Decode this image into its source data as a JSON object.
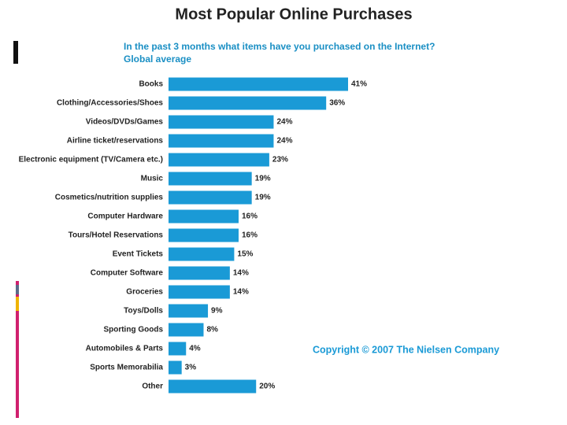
{
  "chart_data": {
    "type": "bar",
    "orientation": "horizontal",
    "title": "Most Popular Online Purchases",
    "subtitle": [
      "In the past 3 months what items have you purchased on the Internet?",
      "Global average"
    ],
    "annotation": "Copyright © 2007 The Nielsen Company",
    "color": "#1a9ad6",
    "categories": [
      "Books",
      "Clothing/Accessories/Shoes",
      "Videos/DVDs/Games",
      "Airline ticket/reservations",
      "Electronic equipment (TV/Camera etc.)",
      "Music",
      "Cosmetics/nutrition supplies",
      "Computer Hardware",
      "Tours/Hotel Reservations",
      "Event Tickets",
      "Computer Software",
      "Groceries",
      "Toys/Dolls",
      "Sporting Goods",
      "Automobiles & Parts",
      "Sports Memorabilia",
      "Other"
    ],
    "values": [
      41,
      36,
      24,
      24,
      23,
      19,
      19,
      16,
      16,
      15,
      14,
      14,
      9,
      8,
      4,
      3,
      20
    ],
    "value_labels": [
      "41%",
      "36%",
      "24%",
      "24%",
      "23%",
      "19%",
      "19%",
      "16%",
      "16%",
      "15%",
      "14%",
      "14%",
      "9%",
      "8%",
      "4%",
      "3%",
      "20%"
    ]
  }
}
